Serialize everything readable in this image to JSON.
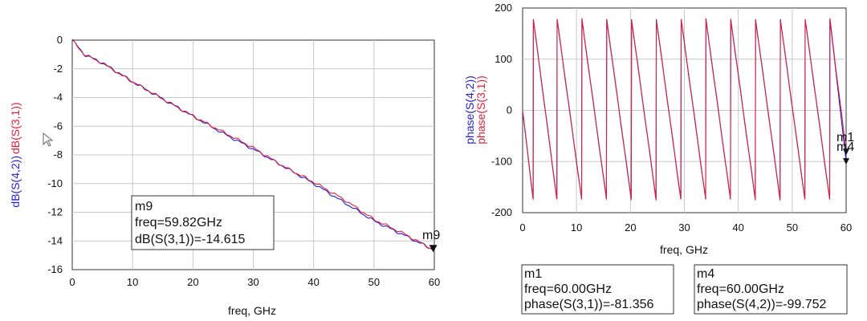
{
  "chart_data": [
    {
      "type": "line",
      "xlabel": "freq, GHz",
      "ylabel_parts": [
        {
          "text": "dB(S(4,2))",
          "color": "#1f1fd6"
        },
        {
          "text": "dB(S(3,1))",
          "color": "#e0203a"
        }
      ],
      "xlim": [
        0,
        60
      ],
      "ylim": [
        -16,
        0
      ],
      "xticks": [
        0,
        10,
        20,
        30,
        40,
        50,
        60
      ],
      "yticks": [
        0,
        -2,
        -4,
        -6,
        -8,
        -10,
        -12,
        -14,
        -16
      ],
      "grid": true,
      "series": [
        {
          "name": "dB(S(4,2))",
          "color": "#1f1fd6",
          "x": [
            0,
            2,
            5,
            10,
            15,
            20,
            25,
            30,
            35,
            40,
            45,
            50,
            55,
            59.82
          ],
          "y": [
            0,
            -1.0,
            -1.6,
            -2.9,
            -4.1,
            -5.3,
            -6.5,
            -7.6,
            -8.8,
            -10.0,
            -11.3,
            -12.6,
            -13.6,
            -14.6
          ]
        },
        {
          "name": "dB(S(3,1))",
          "color": "#e0203a",
          "x": [
            0,
            2,
            5,
            10,
            15,
            20,
            25,
            30,
            35,
            40,
            45,
            50,
            55,
            59.82
          ],
          "y": [
            0,
            -1.0,
            -1.6,
            -2.9,
            -4.1,
            -5.3,
            -6.4,
            -7.5,
            -8.8,
            -9.9,
            -11.1,
            -12.5,
            -13.5,
            -14.615
          ]
        }
      ],
      "marker": {
        "name": "m9",
        "x": 59.82,
        "y": -14.615,
        "readout": [
          "m9",
          "freq=59.82GHz",
          "dB(S(3,1))=-14.615"
        ]
      }
    },
    {
      "type": "line",
      "xlabel": "freq, GHz",
      "ylabel_parts": [
        {
          "text": "phase(S(4,2))",
          "color": "#1f1fd6"
        },
        {
          "text": "phase(S(3,1))",
          "color": "#e0203a"
        }
      ],
      "xlim": [
        0,
        60
      ],
      "ylim": [
        -200,
        200
      ],
      "xticks": [
        0,
        10,
        20,
        30,
        40,
        50,
        60
      ],
      "yticks": [
        200,
        100,
        0,
        -100,
        -200
      ],
      "grid": true,
      "wrap_frequencies_ghz": [
        2.0,
        6.4,
        11.0,
        15.6,
        20.2,
        24.8,
        29.4,
        34.0,
        38.6,
        43.2,
        47.8,
        52.4,
        57.0
      ],
      "series": [
        {
          "name": "phase(S(4,2))",
          "color": "#1f1fd6",
          "end_value": -99.752
        },
        {
          "name": "phase(S(3,1))",
          "color": "#e0203a",
          "end_value": -81.356
        }
      ],
      "markers": [
        {
          "name": "m1",
          "x": 60.0,
          "y": -81.356,
          "readout": [
            "m1",
            "freq=60.00GHz",
            "phase(S(3,1))=-81.356"
          ]
        },
        {
          "name": "m4",
          "x": 60.0,
          "y": -99.752,
          "readout": [
            "m4",
            "freq=60.00GHz",
            "phase(S(4,2))=-99.752"
          ]
        }
      ]
    }
  ]
}
